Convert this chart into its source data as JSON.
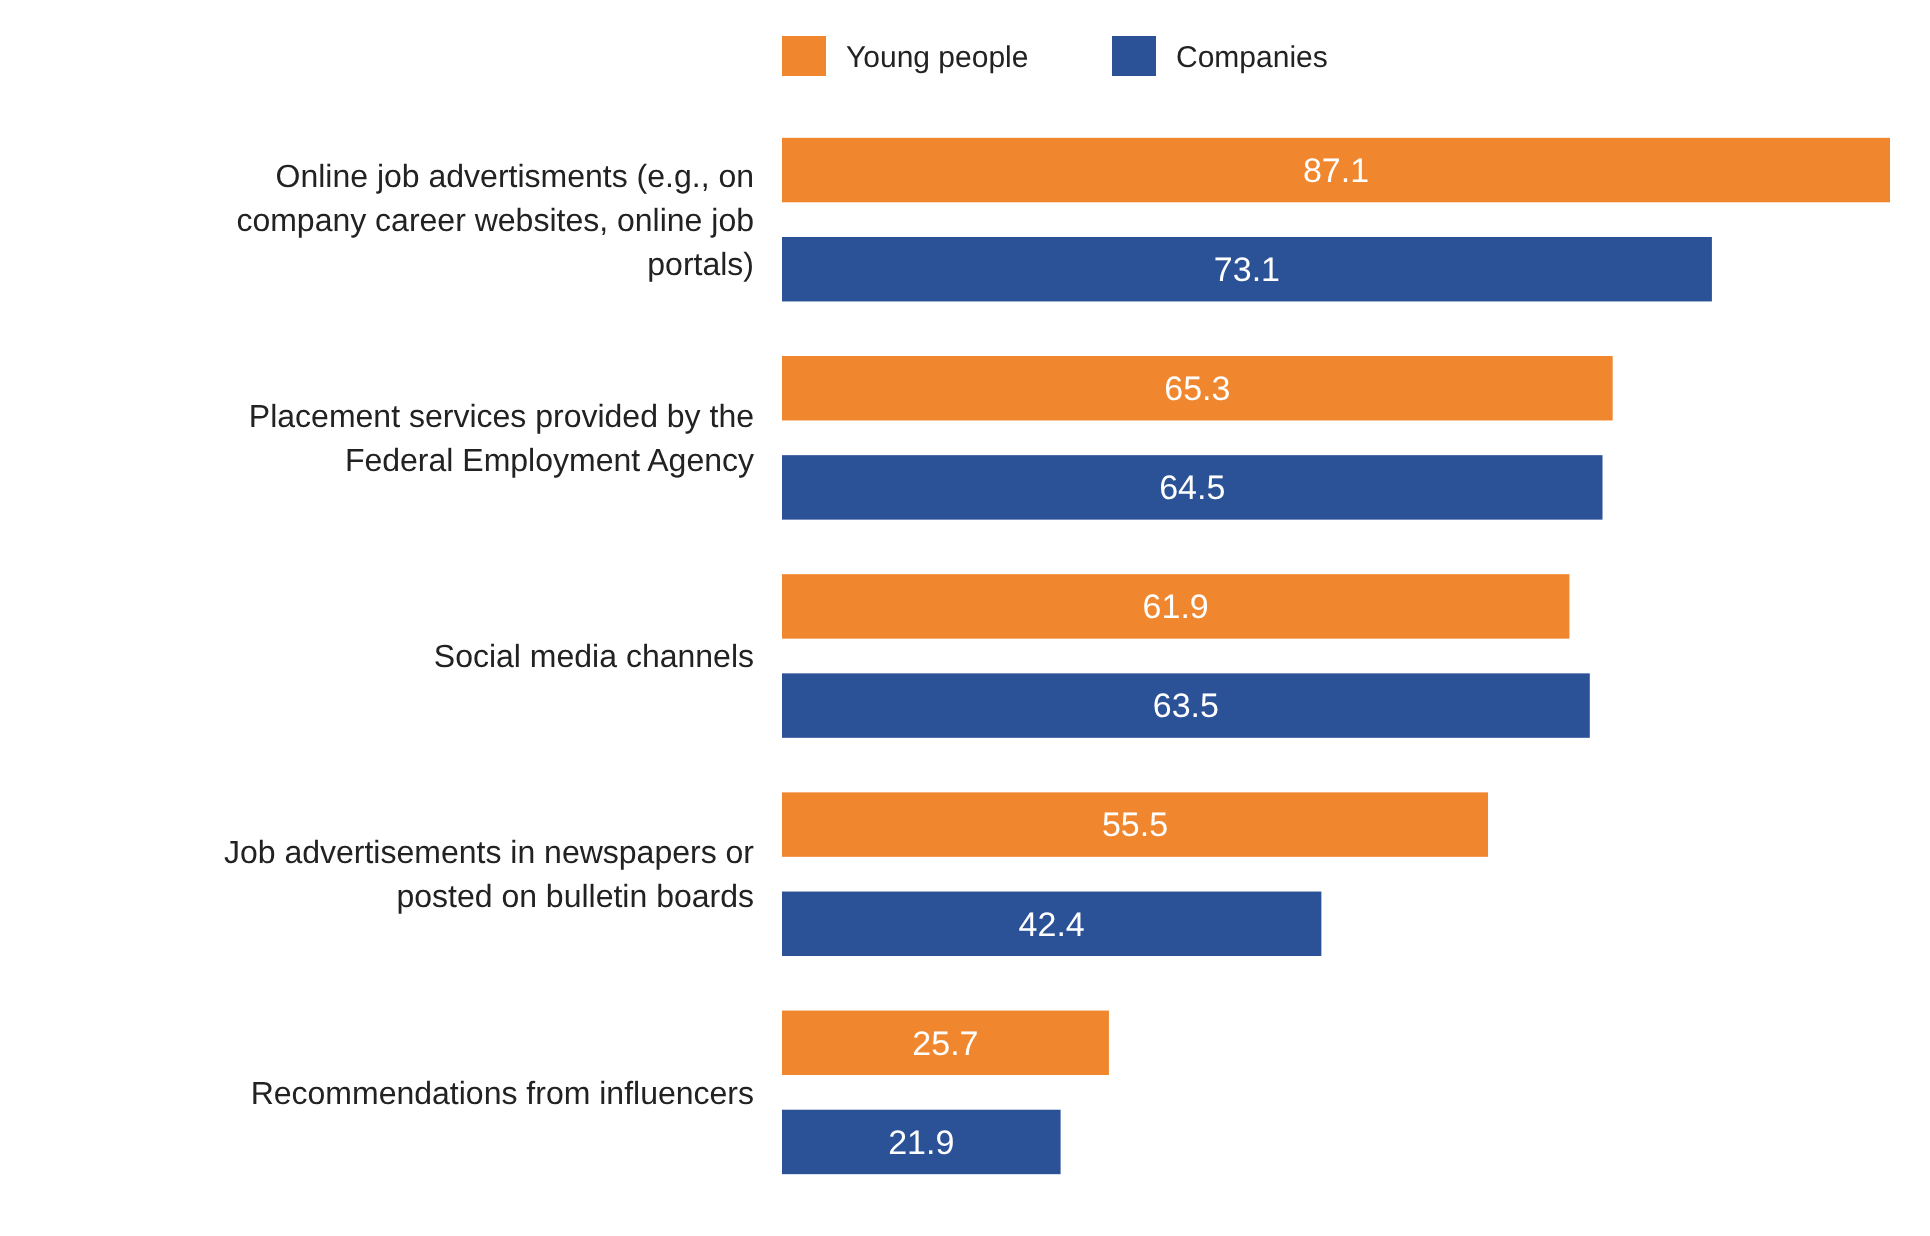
{
  "chart_data": {
    "type": "bar",
    "orientation": "horizontal",
    "categories": [
      "Online job advertisments (e.g., on company career websites, online job portals)",
      "Placement services provided by the Federal Employment Agency",
      "Social media channels",
      "Job advertisements in newspapers or posted on bulletin boards",
      "Recommendations from influencers"
    ],
    "series": [
      {
        "name": "Young people",
        "color": "#f0862e",
        "values": [
          87.1,
          65.3,
          61.9,
          55.5,
          25.7
        ]
      },
      {
        "name": "Companies",
        "color": "#2b5196",
        "values": [
          73.1,
          64.5,
          63.5,
          42.4,
          21.9
        ]
      }
    ],
    "data_labels": true,
    "legend": "top"
  }
}
